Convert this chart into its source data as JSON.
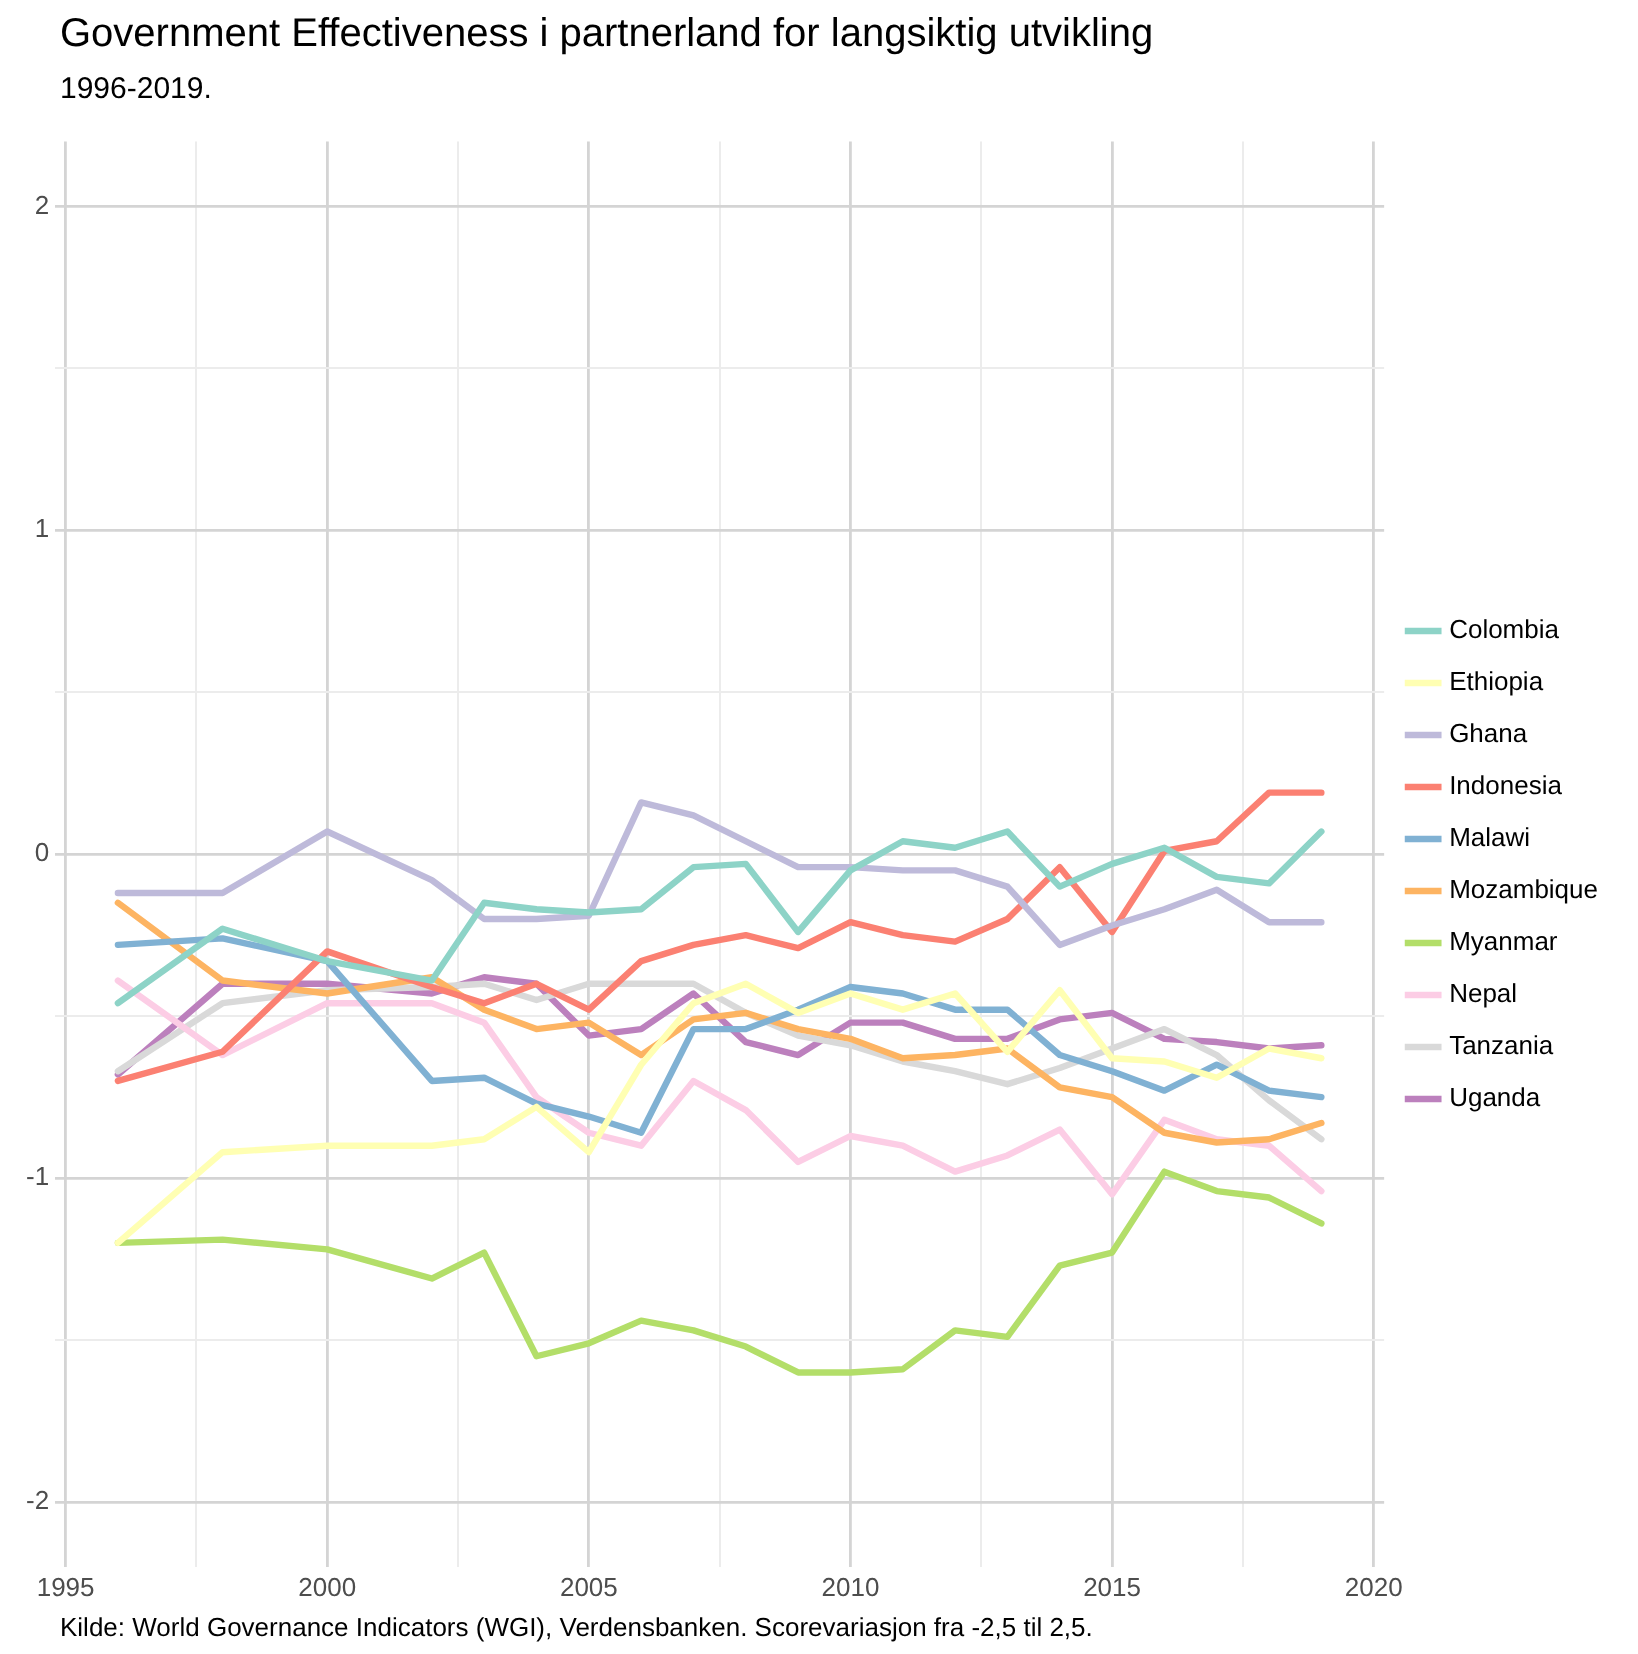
{
  "chart_data": {
    "type": "line",
    "title": "Government Effectiveness i partnerland for langsiktig utvikling",
    "subtitle": "1996-2019.",
    "annotations": [
      "Kilde: World Governance Indicators (WGI), Verdensbanken. Scorevariasjon fra -2,5 til 2,5."
    ],
    "x": [
      1996,
      1998,
      2000,
      2002,
      2003,
      2004,
      2005,
      2006,
      2007,
      2008,
      2009,
      2010,
      2011,
      2012,
      2013,
      2014,
      2015,
      2016,
      2017,
      2018,
      2019
    ],
    "xlim": [
      1994.8,
      2020.2
    ],
    "xticks": [
      1995,
      {
        "value": 1997.5,
        "label": null
      },
      2000,
      {
        "value": 2002.5,
        "label": null
      },
      2005,
      {
        "value": 2007.5,
        "label": null
      },
      2010,
      {
        "value": 2012.5,
        "label": null
      },
      2015,
      {
        "value": 2017.5,
        "label": null
      },
      2020
    ],
    "ylim": [
      -2.2,
      2.2
    ],
    "yticks": [
      -2,
      {
        "value": -1.5,
        "label": null
      },
      -1,
      {
        "value": -0.5,
        "label": null
      },
      0,
      {
        "value": 0.5,
        "label": null
      },
      1,
      {
        "value": 1.5,
        "label": null
      },
      2
    ],
    "grid": true,
    "legend": "right",
    "marker": "none",
    "line_style": "solid",
    "series": [
      {
        "name": "Colombia",
        "color": "#8dd3c7",
        "values": [
          -0.46,
          -0.23,
          -0.33,
          -0.39,
          -0.15,
          -0.17,
          -0.18,
          -0.17,
          -0.04,
          -0.03,
          -0.24,
          -0.05,
          0.04,
          0.02,
          0.07,
          -0.1,
          -0.03,
          0.02,
          -0.07,
          -0.09,
          0.07
        ]
      },
      {
        "name": "Ethiopia",
        "color": "#ffffb3",
        "values": [
          -1.2,
          -0.92,
          -0.9,
          -0.9,
          -0.88,
          -0.78,
          -0.92,
          -0.65,
          -0.46,
          -0.4,
          -0.49,
          -0.43,
          -0.48,
          -0.43,
          -0.61,
          -0.42,
          -0.63,
          -0.64,
          -0.69,
          -0.6,
          -0.63
        ]
      },
      {
        "name": "Ghana",
        "color": "#bebada",
        "values": [
          -0.12,
          -0.12,
          0.07,
          -0.08,
          -0.2,
          -0.2,
          -0.19,
          0.16,
          0.12,
          0.04,
          -0.04,
          -0.04,
          -0.05,
          -0.05,
          -0.1,
          -0.28,
          -0.22,
          -0.17,
          -0.11,
          -0.21,
          -0.21
        ]
      },
      {
        "name": "Indonesia",
        "color": "#fb8072",
        "values": [
          -0.7,
          -0.61,
          -0.3,
          -0.41,
          -0.46,
          -0.4,
          -0.48,
          -0.33,
          -0.28,
          -0.25,
          -0.29,
          -0.21,
          -0.25,
          -0.27,
          -0.2,
          -0.04,
          -0.24,
          0.01,
          0.04,
          0.19,
          0.19
        ]
      },
      {
        "name": "Malawi",
        "color": "#80b1d3",
        "values": [
          -0.28,
          -0.26,
          -0.33,
          -0.7,
          -0.69,
          -0.77,
          -0.81,
          -0.86,
          -0.54,
          -0.54,
          -0.48,
          -0.41,
          -0.43,
          -0.48,
          -0.48,
          -0.62,
          -0.67,
          -0.73,
          -0.65,
          -0.73,
          -0.75
        ]
      },
      {
        "name": "Mozambique",
        "color": "#fdb462",
        "values": [
          -0.15,
          -0.39,
          -0.43,
          -0.38,
          -0.48,
          -0.54,
          -0.52,
          -0.62,
          -0.51,
          -0.49,
          -0.54,
          -0.57,
          -0.63,
          -0.62,
          -0.6,
          -0.72,
          -0.75,
          -0.86,
          -0.89,
          -0.88,
          -0.83
        ]
      },
      {
        "name": "Myanmar",
        "color": "#b3de69",
        "values": [
          -1.2,
          -1.19,
          -1.22,
          -1.31,
          -1.23,
          -1.55,
          -1.51,
          -1.44,
          -1.47,
          -1.52,
          -1.6,
          -1.6,
          -1.59,
          -1.47,
          -1.49,
          -1.27,
          -1.23,
          -0.98,
          -1.04,
          -1.06,
          -1.14
        ]
      },
      {
        "name": "Nepal",
        "color": "#fccde5",
        "values": [
          -0.39,
          -0.62,
          -0.46,
          -0.46,
          -0.52,
          -0.75,
          -0.86,
          -0.9,
          -0.7,
          -0.79,
          -0.95,
          -0.87,
          -0.9,
          -0.98,
          -0.93,
          -0.85,
          -1.05,
          -0.82,
          -0.88,
          -0.9,
          -1.04
        ]
      },
      {
        "name": "Tanzania",
        "color": "#d9d9d9",
        "values": [
          -0.67,
          -0.46,
          -0.42,
          -0.41,
          -0.4,
          -0.45,
          -0.4,
          -0.4,
          -0.4,
          -0.49,
          -0.56,
          -0.59,
          -0.64,
          -0.67,
          -0.71,
          -0.66,
          -0.6,
          -0.54,
          -0.62,
          -0.76,
          -0.88
        ]
      },
      {
        "name": "Uganda",
        "color": "#bc80bd",
        "values": [
          -0.68,
          -0.4,
          -0.4,
          -0.43,
          -0.38,
          -0.4,
          -0.56,
          -0.54,
          -0.43,
          -0.58,
          -0.62,
          -0.52,
          -0.52,
          -0.57,
          -0.57,
          -0.51,
          -0.49,
          -0.57,
          -0.58,
          -0.6,
          -0.59
        ]
      }
    ]
  }
}
